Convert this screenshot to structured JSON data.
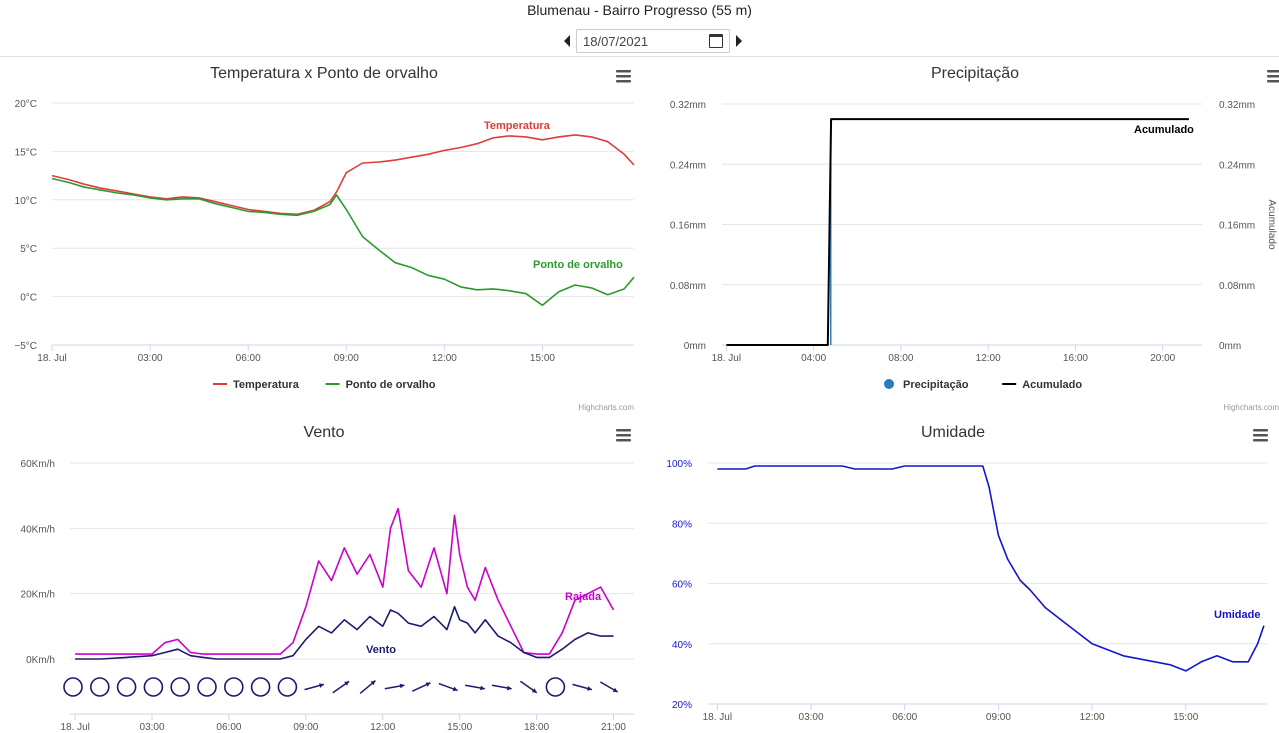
{
  "page": {
    "title": "Blumenau - Bairro Progresso (55 m)",
    "date_value": "18/07/2021"
  },
  "credits": "Highcharts.com",
  "chart_data": [
    {
      "type": "line",
      "title": "Temperatura x Ponto de orvalho",
      "x_unit": "hours since 18 Jul 00:00",
      "xlim": [
        0,
        17.8
      ],
      "x_ticks": [
        "18. Jul",
        "03:00",
        "06:00",
        "09:00",
        "12:00",
        "15:00"
      ],
      "y_ticks": [
        "−5°C",
        "0°C",
        "5°C",
        "10°C",
        "15°C",
        "20°C"
      ],
      "ylim": [
        -5,
        20
      ],
      "legend": "bottom-center",
      "series": [
        {
          "name": "Temperatura",
          "color": "#e03c3c",
          "x": [
            0,
            0.5,
            1,
            1.5,
            2,
            2.5,
            3,
            3.5,
            4,
            4.5,
            5,
            5.5,
            6,
            6.5,
            7,
            7.5,
            8,
            8.5,
            8.7,
            9,
            9.5,
            10,
            10.5,
            11,
            11.5,
            12,
            12.5,
            13,
            13.5,
            14,
            14.5,
            15,
            15.5,
            16,
            16.5,
            17,
            17.5,
            17.8
          ],
          "values": [
            12.5,
            12.1,
            11.6,
            11.2,
            10.9,
            10.6,
            10.3,
            10.1,
            10.3,
            10.2,
            9.8,
            9.4,
            9,
            8.8,
            8.6,
            8.5,
            8.9,
            9.8,
            10.8,
            12.8,
            13.8,
            13.9,
            14.1,
            14.4,
            14.7,
            15.1,
            15.4,
            15.8,
            16.4,
            16.6,
            16.5,
            16.2,
            16.5,
            16.7,
            16.5,
            16,
            14.7,
            13.6
          ]
        },
        {
          "name": "Ponto de orvalho",
          "color": "#2e9a2e",
          "x": [
            0,
            0.5,
            1,
            1.5,
            2,
            2.5,
            3,
            3.5,
            4,
            4.5,
            5,
            5.5,
            6,
            6.5,
            7,
            7.5,
            8,
            8.5,
            8.7,
            9,
            9.5,
            10,
            10.5,
            11,
            11.5,
            12,
            12.5,
            13,
            13.5,
            14,
            14.5,
            15,
            15.5,
            16,
            16.5,
            17,
            17.5,
            17.8
          ],
          "values": [
            12.2,
            11.8,
            11.3,
            11,
            10.7,
            10.5,
            10.2,
            10,
            10.1,
            10.1,
            9.6,
            9.2,
            8.8,
            8.7,
            8.5,
            8.4,
            8.8,
            9.5,
            10.5,
            9,
            6.2,
            4.8,
            3.5,
            3,
            2.2,
            1.8,
            1,
            0.7,
            0.8,
            0.6,
            0.3,
            -0.9,
            0.5,
            1.2,
            0.9,
            0.2,
            0.8,
            2
          ]
        }
      ]
    },
    {
      "type": "line",
      "title": "Precipitação",
      "x_unit": "hours since 18 Jul 00:00",
      "xlim": [
        -0.2,
        21.8
      ],
      "x_ticks": [
        "18. Jul",
        "04:00",
        "08:00",
        "12:00",
        "16:00",
        "20:00"
      ],
      "y_ticks": [
        "0mm",
        "0.08mm",
        "0.16mm",
        "0.24mm",
        "0.32mm"
      ],
      "y2_ticks": [
        "0mm",
        "0.08mm",
        "0.16mm",
        "0.24mm",
        "0.32mm"
      ],
      "y2_label": "Acumulado",
      "ylim": [
        0,
        0.32
      ],
      "legend": "bottom-center",
      "series": [
        {
          "name": "Precipitação",
          "color": "#2b7bbd",
          "x": [
            4.75,
            4.8
          ],
          "values": [
            0,
            0.3
          ]
        },
        {
          "name": "Acumulado",
          "color": "#000000",
          "x": [
            0,
            4.65,
            4.8,
            21.2
          ],
          "values": [
            0,
            0,
            0.3,
            0.3
          ]
        }
      ]
    },
    {
      "type": "line",
      "title": "Vento",
      "x_unit": "hours since 18 Jul 00:00",
      "xlim": [
        -0.2,
        21.8
      ],
      "x_ticks": [
        "18. Jul",
        "03:00",
        "06:00",
        "09:00",
        "12:00",
        "15:00",
        "18:00",
        "21:00"
      ],
      "y_ticks": [
        "0Km/h",
        "20Km/h",
        "40Km/h",
        "60Km/h"
      ],
      "ylim": [
        0,
        60
      ],
      "series": [
        {
          "name": "Rajada",
          "color": "#cc00cc",
          "x": [
            0,
            1,
            2,
            3,
            3.5,
            4,
            4.5,
            5,
            5.5,
            6,
            7,
            8,
            8.5,
            9,
            9.5,
            10,
            10.5,
            11,
            11.5,
            12,
            12.3,
            12.6,
            13,
            13.5,
            14,
            14.5,
            14.8,
            15,
            15.3,
            15.6,
            16,
            16.5,
            17,
            17.5,
            18,
            18.5,
            19,
            19.5,
            20,
            20.5,
            21
          ],
          "values": [
            1.5,
            1.5,
            1.5,
            1.5,
            5,
            6,
            2,
            1.5,
            1.5,
            1.5,
            1.5,
            1.5,
            5,
            16,
            30,
            24,
            34,
            26,
            32,
            22,
            40,
            46,
            27,
            22,
            34,
            20,
            44,
            32,
            22,
            18,
            28,
            18,
            10,
            2,
            1.5,
            1.5,
            8,
            18,
            20,
            22,
            15
          ]
        },
        {
          "name": "Vento",
          "color": "#1c1c6e",
          "x": [
            0,
            1,
            2,
            3,
            3.5,
            4,
            4.5,
            5,
            5.5,
            6,
            7,
            8,
            8.5,
            9,
            9.5,
            10,
            10.5,
            11,
            11.5,
            12,
            12.3,
            12.6,
            13,
            13.5,
            14,
            14.5,
            14.8,
            15,
            15.3,
            15.6,
            16,
            16.5,
            17,
            17.5,
            18,
            18.5,
            19,
            19.5,
            20,
            20.5,
            21
          ],
          "values": [
            0,
            0,
            0.5,
            1,
            2,
            3,
            1,
            0.5,
            0,
            0,
            0,
            0,
            1,
            6,
            10,
            8,
            12,
            9,
            13,
            10,
            15,
            14,
            11,
            10,
            13,
            9,
            16,
            12,
            11,
            8,
            12,
            7,
            5,
            2,
            0.5,
            0.5,
            3,
            6,
            8,
            7,
            7
          ]
        }
      ],
      "series_labels": [
        "Rajada",
        "Vento"
      ],
      "wind_direction_marker_hours": [
        0,
        1,
        2,
        3,
        4,
        5,
        6,
        7,
        8,
        9,
        10,
        11,
        12,
        13,
        14,
        15,
        16,
        17,
        18,
        19,
        20
      ],
      "wind_direction_calm": [
        true,
        true,
        true,
        true,
        true,
        true,
        true,
        true,
        true,
        false,
        false,
        false,
        false,
        false,
        false,
        false,
        false,
        false,
        true,
        false,
        false
      ],
      "wind_direction_angle_deg": [
        0,
        0,
        0,
        0,
        0,
        0,
        0,
        0,
        0,
        -15,
        -35,
        -40,
        -10,
        -25,
        20,
        10,
        10,
        35,
        0,
        15,
        30
      ]
    },
    {
      "type": "line",
      "title": "Umidade",
      "x_unit": "hours since 18 Jul 00:00",
      "xlim": [
        -0.3,
        17.6
      ],
      "x_ticks": [
        "18. Jul",
        "03:00",
        "06:00",
        "09:00",
        "12:00",
        "15:00"
      ],
      "y_ticks": [
        "20%",
        "40%",
        "60%",
        "80%",
        "100%"
      ],
      "ylim": [
        20,
        100
      ],
      "series": [
        {
          "name": "Umidade",
          "color": "#1515cc",
          "x": [
            0,
            0.9,
            1.2,
            2,
            3,
            4,
            4.4,
            5,
            5.6,
            6,
            7,
            8,
            8.5,
            8.7,
            9,
            9.3,
            9.7,
            10,
            10.5,
            11,
            11.5,
            12,
            12.5,
            13,
            13.5,
            14,
            14.5,
            15,
            15.5,
            16,
            16.5,
            17,
            17.3,
            17.5
          ],
          "values": [
            98,
            98,
            99,
            99,
            99,
            99,
            98,
            98,
            98,
            99,
            99,
            99,
            99,
            92,
            76,
            68,
            61,
            58,
            52,
            48,
            44,
            40,
            38,
            36,
            35,
            34,
            33,
            31,
            34,
            36,
            34,
            34,
            40,
            46
          ]
        }
      ]
    }
  ]
}
